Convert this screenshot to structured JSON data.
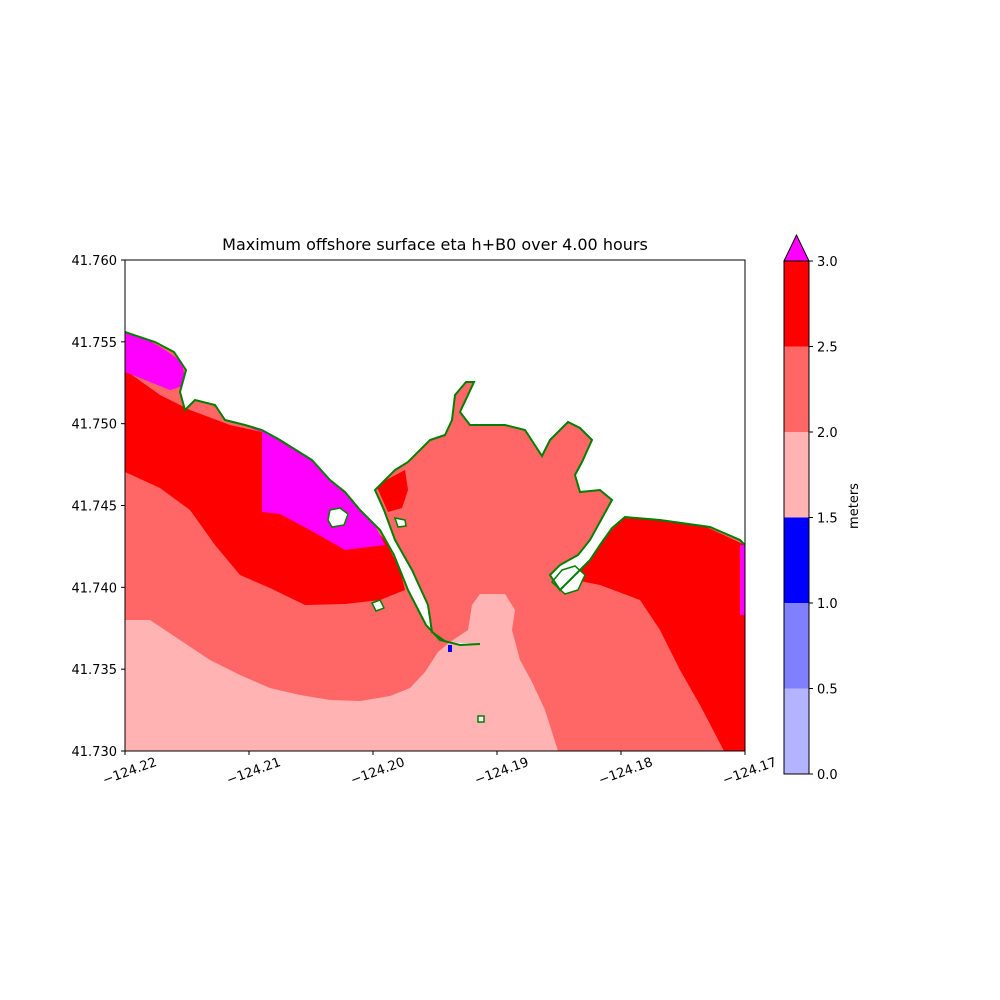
{
  "chart_data": {
    "type": "heatmap",
    "title": "Maximum offshore surface eta h+B0 over 4.00 hours",
    "xlabel": "",
    "ylabel": "",
    "x_ticks": [
      "−124.22",
      "−124.21",
      "−124.20",
      "−124.19",
      "−124.18",
      "−124.17"
    ],
    "y_ticks": [
      "41.730",
      "41.735",
      "41.740",
      "41.745",
      "41.750",
      "41.755",
      "41.760"
    ],
    "xlim": [
      -124.22,
      -124.17
    ],
    "ylim": [
      41.73,
      41.76
    ],
    "colorbar": {
      "label": "meters",
      "ticks": [
        "0.0",
        "0.5",
        "1.0",
        "1.5",
        "2.0",
        "2.5",
        "3.0"
      ],
      "levels": [
        0.0,
        0.5,
        1.0,
        1.5,
        2.0,
        2.5,
        3.0
      ],
      "colors": [
        "#b3b3ff",
        "#8080ff",
        "#0000ff",
        "#ffb3b3",
        "#ff6666",
        "#ff0000"
      ],
      "over_color": "#ff00ff",
      "extend": "max"
    },
    "shoreline_color": "#008000",
    "land_color": "#ffffff"
  }
}
